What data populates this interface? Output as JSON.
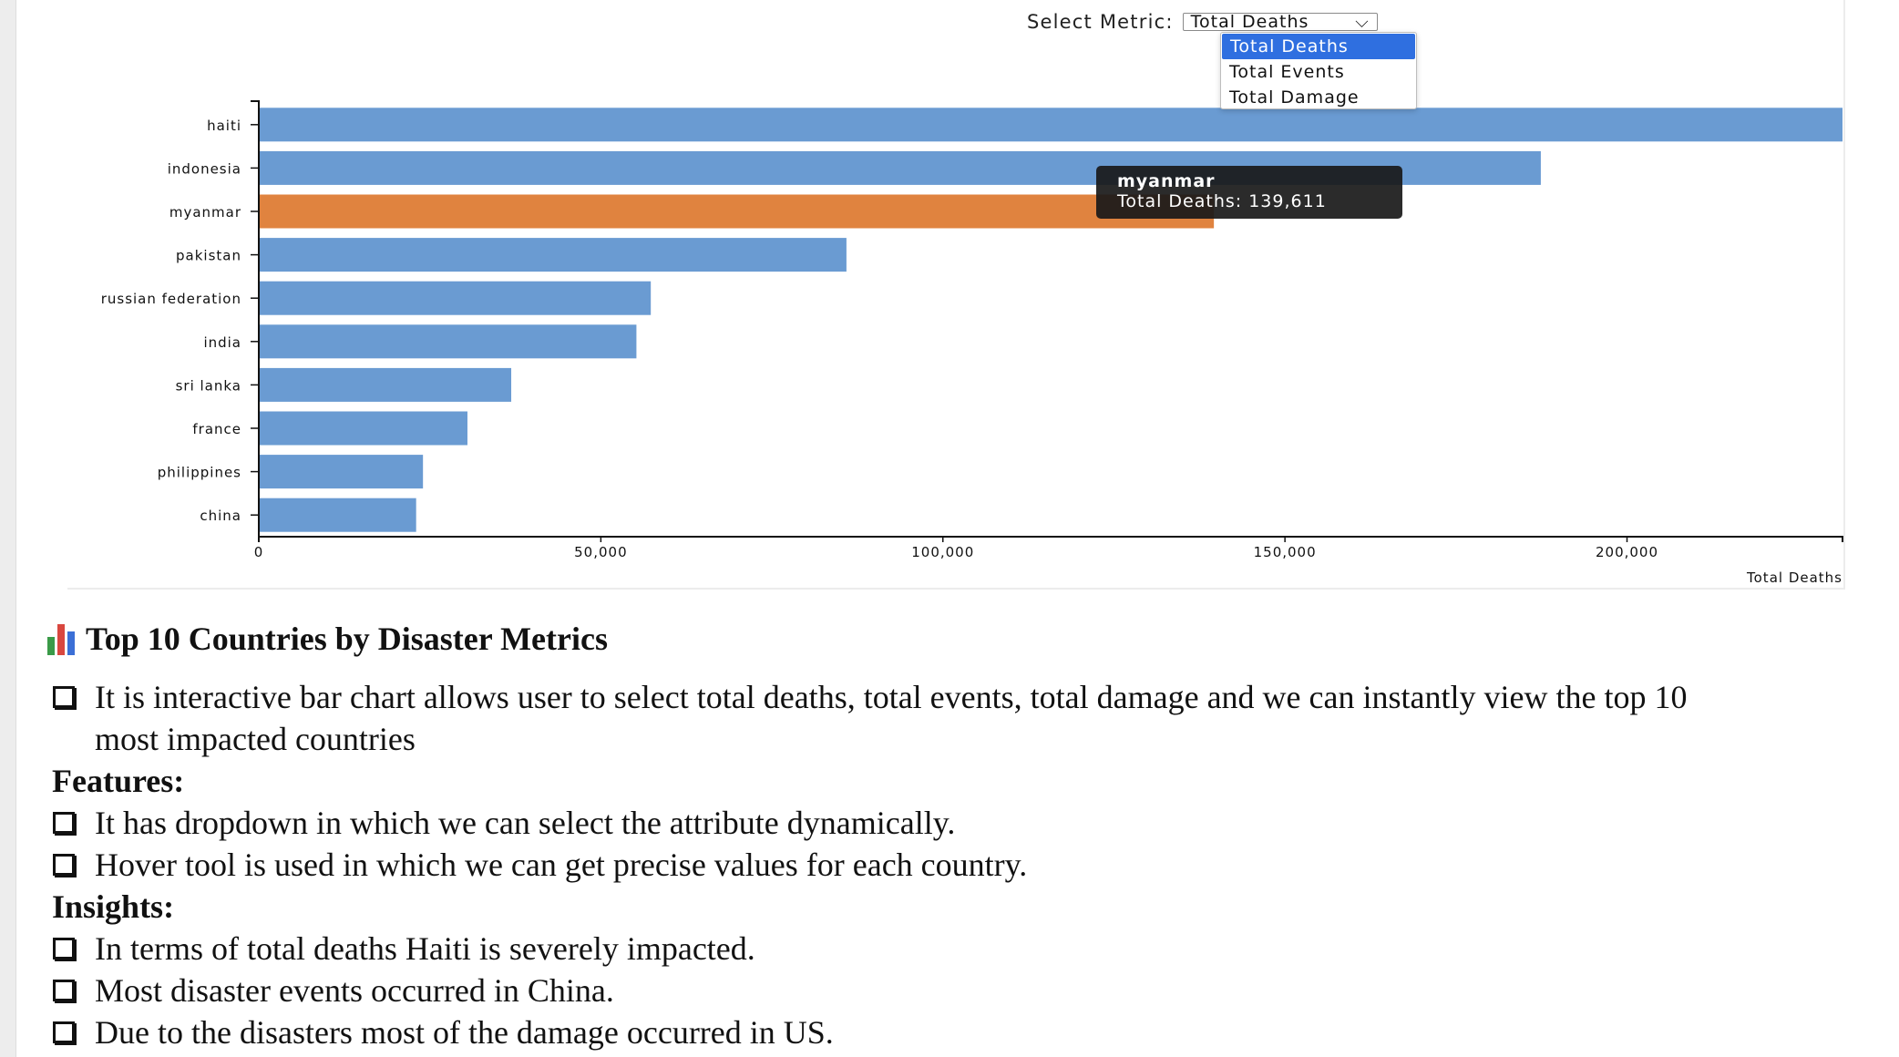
{
  "control": {
    "label": "Select Metric:",
    "selected": "Total Deaths",
    "options": [
      "Total Deaths",
      "Total Events",
      "Total Damage"
    ]
  },
  "tooltip": {
    "country": "myanmar",
    "text": "Total Deaths: 139,611"
  },
  "chart_data": {
    "type": "bar",
    "orientation": "horizontal",
    "categories": [
      "haiti",
      "indonesia",
      "myanmar",
      "pakistan",
      "russian federation",
      "india",
      "sri lanka",
      "france",
      "philippines",
      "china"
    ],
    "values": [
      231500,
      187400,
      139611,
      85900,
      57300,
      55200,
      36900,
      30500,
      24000,
      23000
    ],
    "highlighted": "myanmar",
    "xlabel": "Total Deaths",
    "xlim": [
      0,
      231500
    ],
    "xticks": [
      0,
      50000,
      100000,
      150000,
      200000
    ],
    "xtick_labels": [
      "0",
      "50,000",
      "100,000",
      "150,000",
      "200,000"
    ],
    "colors": {
      "bar": "#6a9bd2",
      "highlight": "#e0833f"
    },
    "grid": false
  },
  "notes": {
    "heading": "Top 10 Countries by Disaster Metrics",
    "intro": [
      "It is interactive bar chart allows user to select total deaths, total events, total damage and we can instantly view the top 10",
      "most impacted countries"
    ],
    "features_heading": "Features:",
    "features": [
      "It has dropdown in which we can select the attribute dynamically.",
      "Hover tool is used in which we can get precise values for each country."
    ],
    "insights_heading": "Insights:",
    "insights": [
      "In terms of total deaths Haiti is severely impacted.",
      "Most disaster events occurred in China.",
      "Due to the disasters most of the damage occurred in US."
    ]
  }
}
